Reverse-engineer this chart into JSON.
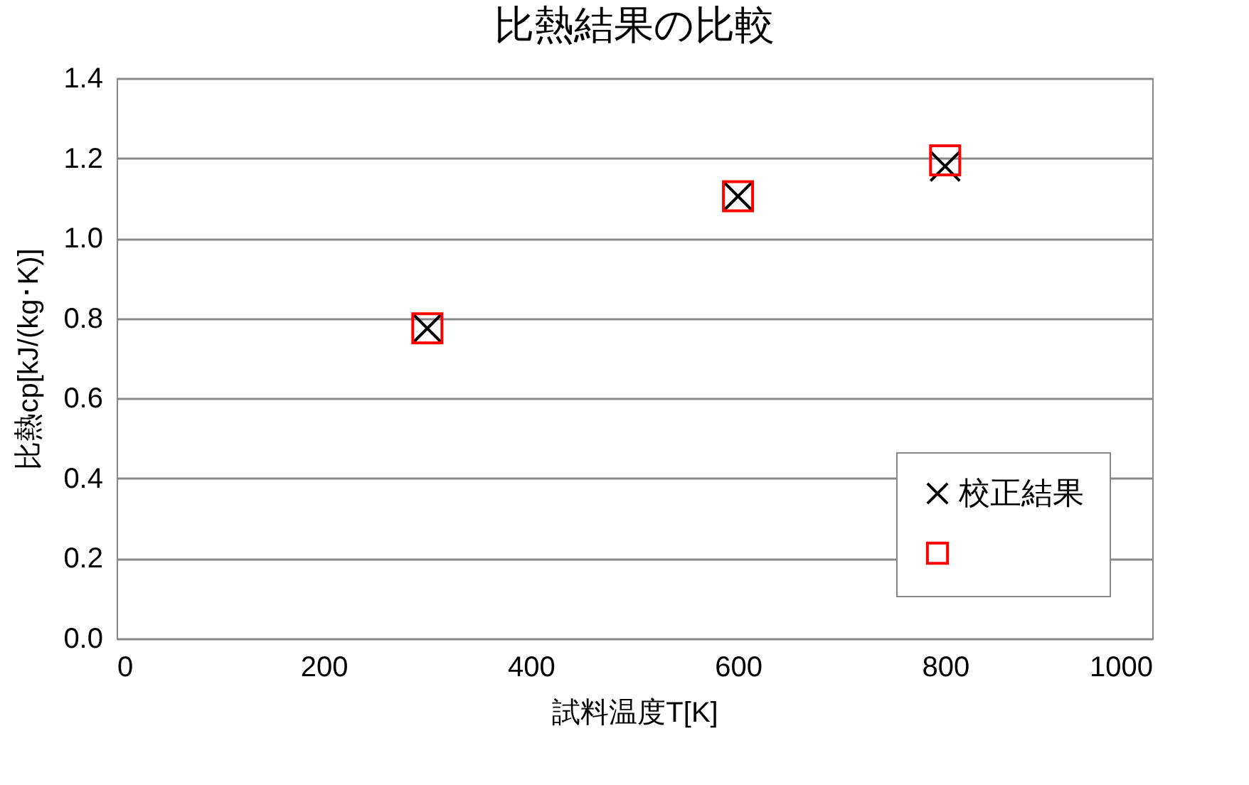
{
  "chart_data": {
    "type": "scatter",
    "title": "比熱結果の比較",
    "xlabel": "試料温度T[K]",
    "ylabel": "比熱cp[kJ/(kg･K)]",
    "x": [
      300,
      600,
      800
    ],
    "series": [
      {
        "name": "校正結果",
        "color": "#000000",
        "marker": "cross",
        "values": [
          0.775,
          1.105,
          1.18
        ]
      },
      {
        "color": "#ff0000",
        "marker": "square",
        "values": [
          0.775,
          1.105,
          1.195
        ]
      }
    ],
    "xlim": [
      0,
      1000
    ],
    "xticks": [
      0,
      200,
      400,
      600,
      800,
      1000
    ],
    "ylim": [
      0,
      1.4
    ],
    "yticks": [
      {
        "value": 0,
        "label": "0.0"
      },
      0.2,
      0.4,
      0.6,
      0.8,
      {
        "value": 1,
        "label": "1.0"
      },
      1.2,
      1.4
    ],
    "grid": "y",
    "legend": "bottom right"
  }
}
